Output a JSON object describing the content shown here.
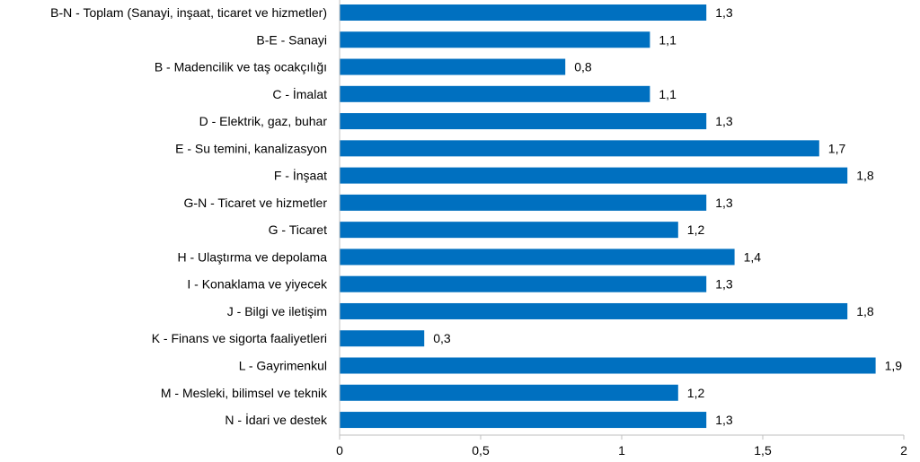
{
  "chart_data": {
    "type": "bar",
    "orientation": "horizontal",
    "title": "",
    "xlabel": "",
    "ylabel": "",
    "xlim": [
      0,
      2
    ],
    "x_ticks": [
      0,
      0.5,
      1,
      1.5,
      2
    ],
    "x_tick_labels": [
      "0",
      "0,5",
      "1",
      "1,5",
      "2"
    ],
    "grid": false,
    "legend": "none",
    "bar_color": "#0070C0",
    "categories": [
      "B-N - Toplam (Sanayi, inşaat, ticaret ve hizmetler)",
      "B-E - Sanayi",
      "B - Madencilik ve taş ocakçılığı",
      "C - İmalat",
      "D - Elektrik, gaz, buhar",
      "E - Su temini, kanalizasyon",
      "F - İnşaat",
      "G-N - Ticaret ve hizmetler",
      "G - Ticaret",
      "H - Ulaştırma ve depolama",
      "I - Konaklama ve yiyecek",
      "J - Bilgi ve iletişim",
      "K - Finans ve sigorta faaliyetleri",
      "L - Gayrimenkul",
      "M - Mesleki, bilimsel ve teknik",
      "N - İdari ve destek"
    ],
    "values": [
      1.3,
      1.1,
      0.8,
      1.1,
      1.3,
      1.7,
      1.8,
      1.3,
      1.2,
      1.4,
      1.3,
      1.8,
      0.3,
      1.9,
      1.2,
      1.3
    ],
    "value_labels": [
      "1,3",
      "1,1",
      "0,8",
      "1,1",
      "1,3",
      "1,7",
      "1,8",
      "1,3",
      "1,2",
      "1,4",
      "1,3",
      "1,8",
      "0,3",
      "1,9",
      "1,2",
      "1,3"
    ]
  }
}
